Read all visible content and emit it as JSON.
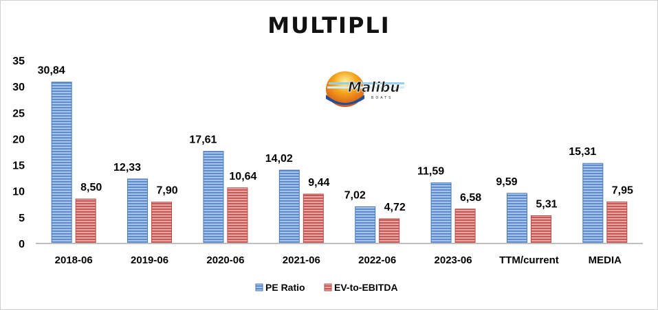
{
  "chart_data": {
    "type": "bar",
    "title": "MULTIPLI",
    "categories": [
      "2018-06",
      "2019-06",
      "2020-06",
      "2021-06",
      "2022-06",
      "2023-06",
      "TTM/current",
      "MEDIA"
    ],
    "series": [
      {
        "name": "PE Ratio",
        "color": "#4f81bd",
        "values": [
          30.84,
          12.33,
          17.61,
          14.02,
          7.02,
          11.59,
          9.59,
          15.31
        ],
        "labels": [
          "30,84",
          "12,33",
          "17,61",
          "14,02",
          "7,02",
          "11,59",
          "9,59",
          "15,31"
        ]
      },
      {
        "name": "EV-to-EBITDA",
        "color": "#c0504d",
        "values": [
          8.5,
          7.9,
          10.64,
          9.44,
          4.72,
          6.58,
          5.31,
          7.95
        ],
        "labels": [
          "8,50",
          "7,90",
          "10,64",
          "9,44",
          "4,72",
          "6,58",
          "5,31",
          "7,95"
        ]
      }
    ],
    "ylim": [
      0,
      35
    ],
    "yticks": [
      0,
      5,
      10,
      15,
      20,
      25,
      30,
      35
    ],
    "grid": false,
    "legend": "bottom-center"
  },
  "logo": {
    "text": "Malibu",
    "sub": "BOATS",
    "icon": "malibu-boats-logo"
  }
}
